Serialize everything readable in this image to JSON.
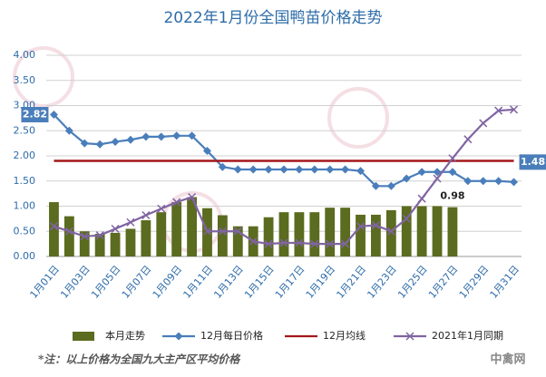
{
  "chart_data": {
    "type": "bar",
    "title": "2022年1月份全国鸭苗价格走势",
    "categories": [
      "1月01日",
      null,
      "1月03日",
      null,
      "1月05日",
      null,
      "1月07日",
      null,
      "1月09日",
      null,
      "1月11日",
      null,
      "1月13日",
      null,
      "1月15日",
      null,
      "1月17日",
      null,
      "1月19日",
      null,
      "1月21日",
      null,
      "1月23日",
      null,
      "1月25日",
      null,
      "1月27日",
      null,
      "1月29日",
      null,
      "1月31日"
    ],
    "ylim": [
      0,
      4
    ],
    "yticks": [
      {
        "value": 0,
        "label": "0.00"
      },
      {
        "value": 0.5,
        "label": "0.50"
      },
      {
        "value": 1,
        "label": "1.00"
      },
      {
        "value": 1.5,
        "label": "1.50"
      },
      {
        "value": 2,
        "label": "2.00"
      },
      {
        "value": 2.5,
        "label": "2.50"
      },
      {
        "value": 3,
        "label": "3.00"
      },
      {
        "value": 3.5,
        "label": "3.50"
      },
      {
        "value": 4,
        "label": "4.00"
      }
    ],
    "grid": true,
    "legend": "bottom",
    "series": [
      {
        "name": "本月走势",
        "type": "bar",
        "color": "#5b6b1f",
        "values": [
          1.08,
          0.8,
          0.5,
          0.45,
          0.47,
          0.55,
          0.72,
          0.88,
          1.08,
          1.18,
          0.96,
          0.82,
          0.6,
          0.6,
          0.78,
          0.88,
          0.88,
          0.88,
          0.97,
          0.97,
          0.83,
          0.83,
          0.92,
          1.0,
          1.0,
          1.0,
          0.98,
          null,
          null,
          null,
          null
        ],
        "value_labels": [
          null,
          null,
          null,
          null,
          null,
          null,
          null,
          null,
          null,
          null,
          null,
          null,
          null,
          null,
          null,
          null,
          null,
          null,
          null,
          null,
          null,
          null,
          null,
          null,
          null,
          null,
          "0.98",
          null,
          null,
          null,
          null
        ]
      },
      {
        "name": "12月每日价格",
        "type": "line",
        "marker": "diamond",
        "color": "#4a7ebb",
        "values": [
          2.82,
          2.5,
          2.25,
          2.23,
          2.28,
          2.32,
          2.38,
          2.38,
          2.4,
          2.4,
          2.1,
          1.78,
          1.73,
          1.73,
          1.73,
          1.73,
          1.73,
          1.73,
          1.73,
          1.73,
          1.7,
          1.4,
          1.4,
          1.55,
          1.68,
          1.68,
          1.68,
          1.5,
          1.5,
          1.5,
          1.48
        ],
        "value_labels": [
          "2.82",
          null,
          null,
          null,
          null,
          null,
          null,
          null,
          null,
          null,
          null,
          null,
          null,
          null,
          null,
          null,
          null,
          null,
          null,
          null,
          null,
          null,
          null,
          null,
          null,
          null,
          null,
          null,
          null,
          null,
          "1.48"
        ]
      },
      {
        "name": "12月均线",
        "type": "line",
        "marker": "none",
        "color": "#a3181c",
        "values": [
          1.9,
          1.9,
          1.9,
          1.9,
          1.9,
          1.9,
          1.9,
          1.9,
          1.9,
          1.9,
          1.9,
          1.9,
          1.9,
          1.9,
          1.9,
          1.9,
          1.9,
          1.9,
          1.9,
          1.9,
          1.9,
          1.9,
          1.9,
          1.9,
          1.9,
          1.9,
          1.9,
          1.9,
          1.9,
          1.9,
          1.9
        ]
      },
      {
        "name": "2021年1月同期",
        "type": "line",
        "marker": "x",
        "color": "#8064a2",
        "values": [
          0.6,
          0.5,
          0.4,
          0.42,
          0.55,
          0.68,
          0.82,
          0.95,
          1.08,
          1.18,
          0.5,
          0.5,
          0.5,
          0.3,
          0.25,
          0.27,
          0.27,
          0.25,
          0.25,
          0.25,
          0.6,
          0.62,
          0.5,
          0.75,
          1.15,
          1.55,
          1.95,
          2.33,
          2.65,
          2.9,
          2.92
        ]
      }
    ],
    "footnote": "*注：以上价格为全国九大主产区平均价格",
    "source": "中禽网"
  }
}
